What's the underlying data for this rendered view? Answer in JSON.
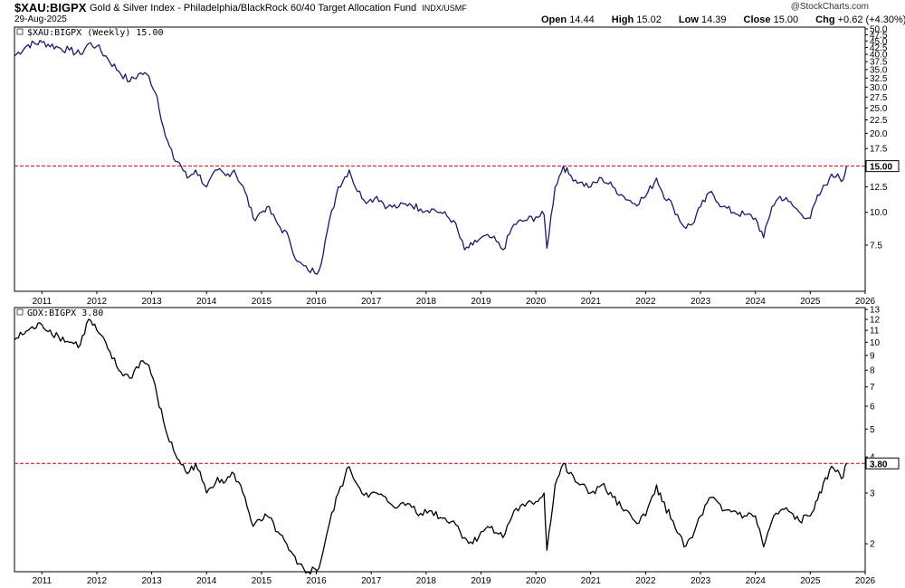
{
  "header": {
    "symbol": "$XAU:BIGPX",
    "description": "Gold & Silver Index - Philadelphia/BlackRock 60/40 Target Allocation Fund",
    "exchange": "INDX/USMF",
    "date": "29-Aug-2025",
    "brand": "@StockCharts.com",
    "ohlc": [
      {
        "label": "Open",
        "value": "14.44"
      },
      {
        "label": "High",
        "value": "15.02"
      },
      {
        "label": "Low",
        "value": "14.39"
      },
      {
        "label": "Close",
        "value": "15.00"
      },
      {
        "label": "Chg",
        "value": "+0.62 (+4.30%)"
      }
    ]
  },
  "chart_data": [
    {
      "type": "line",
      "title": "$XAU:BIGPX (Weekly) 15.00",
      "scale": "log",
      "color": "#1a1a66",
      "ylim": [
        5.0,
        50.0
      ],
      "y_ticks": [
        "50.0",
        "47.5",
        "45.0",
        "42.5",
        "40.0",
        "37.5",
        "35.0",
        "32.5",
        "30.0",
        "27.5",
        "25.0",
        "22.5",
        "20.0",
        "17.5",
        "15.0",
        "12.5",
        "10.0",
        "7.5"
      ],
      "y_tick_values": [
        50,
        47.5,
        45,
        42.5,
        40,
        37.5,
        35,
        32.5,
        30,
        27.5,
        25,
        22.5,
        20,
        17.5,
        15,
        12.5,
        10,
        7.5
      ],
      "reference_line": 15.0,
      "last_label": "15.00",
      "x_years": [
        "2011",
        "2012",
        "2013",
        "2014",
        "2015",
        "2016",
        "2017",
        "2018",
        "2019",
        "2020",
        "2021",
        "2022",
        "2023",
        "2024",
        "2025",
        "2026"
      ],
      "x": [
        2010.5,
        2010.75,
        2011.0,
        2011.3,
        2011.5,
        2011.7,
        2011.85,
        2012.0,
        2012.2,
        2012.4,
        2012.6,
        2012.8,
        2012.95,
        2013.1,
        2013.25,
        2013.4,
        2013.5,
        2013.65,
        2013.8,
        2014.0,
        2014.2,
        2014.35,
        2014.5,
        2014.7,
        2014.85,
        2015.0,
        2015.1,
        2015.3,
        2015.5,
        2015.65,
        2015.85,
        2016.05,
        2016.2,
        2016.4,
        2016.6,
        2016.75,
        2016.95,
        2017.1,
        2017.3,
        2017.5,
        2017.7,
        2017.9,
        2018.1,
        2018.3,
        2018.5,
        2018.7,
        2018.85,
        2019.0,
        2019.2,
        2019.4,
        2019.6,
        2019.8,
        2020.0,
        2020.15,
        2020.2,
        2020.35,
        2020.5,
        2020.6,
        2020.8,
        2021.0,
        2021.2,
        2021.4,
        2021.6,
        2021.8,
        2022.0,
        2022.2,
        2022.3,
        2022.5,
        2022.7,
        2022.85,
        2023.0,
        2023.2,
        2023.4,
        2023.6,
        2023.8,
        2024.0,
        2024.15,
        2024.3,
        2024.45,
        2024.6,
        2024.8,
        2025.0,
        2025.1,
        2025.2,
        2025.35,
        2025.5,
        2025.6,
        2025.66
      ],
      "values": [
        39.5,
        43.5,
        44.5,
        42.5,
        41.5,
        40.0,
        44.0,
        43.0,
        38.5,
        34.5,
        31.5,
        34.0,
        33.0,
        27.5,
        19.5,
        16.0,
        15.5,
        13.5,
        14.5,
        12.5,
        14.5,
        13.8,
        14.5,
        12.0,
        9.5,
        10.0,
        10.5,
        9.0,
        8.0,
        6.5,
        6.0,
        6.0,
        8.5,
        12.5,
        14.5,
        12.0,
        11.0,
        11.5,
        10.5,
        10.5,
        10.8,
        10.3,
        10.3,
        9.9,
        9.3,
        7.2,
        7.5,
        8.0,
        8.0,
        7.2,
        9.0,
        9.3,
        9.6,
        9.8,
        7.3,
        12.5,
        15.0,
        14.0,
        13.0,
        12.5,
        13.5,
        12.5,
        11.5,
        10.8,
        11.5,
        13.5,
        12.0,
        10.5,
        8.8,
        9.0,
        10.5,
        12.0,
        10.5,
        10.0,
        9.8,
        9.5,
        8.0,
        10.5,
        11.5,
        11.0,
        10.0,
        9.5,
        11.0,
        12.0,
        13.5,
        14.0,
        13.3,
        15.0
      ]
    },
    {
      "type": "line",
      "title": "GDX:BIGPX 3.80",
      "scale": "log",
      "color": "#000000",
      "ylim": [
        1.6,
        13.0
      ],
      "y_ticks": [
        "13",
        "12",
        "11",
        "10",
        "9",
        "8",
        "7",
        "6",
        "5",
        "4",
        "3",
        "2"
      ],
      "y_tick_values": [
        13,
        12,
        11,
        10,
        9,
        8,
        7,
        6,
        5,
        4,
        3,
        2
      ],
      "reference_line": 3.8,
      "last_label": "3.80",
      "x_years": [
        "2011",
        "2012",
        "2013",
        "2014",
        "2015",
        "2016",
        "2017",
        "2018",
        "2019",
        "2020",
        "2021",
        "2022",
        "2023",
        "2024",
        "2025",
        "2026"
      ],
      "x": [
        2010.5,
        2010.75,
        2011.0,
        2011.3,
        2011.5,
        2011.7,
        2011.85,
        2012.0,
        2012.2,
        2012.4,
        2012.6,
        2012.8,
        2012.95,
        2013.1,
        2013.25,
        2013.4,
        2013.5,
        2013.65,
        2013.8,
        2014.0,
        2014.2,
        2014.35,
        2014.5,
        2014.7,
        2014.85,
        2015.0,
        2015.1,
        2015.3,
        2015.5,
        2015.65,
        2015.85,
        2016.05,
        2016.2,
        2016.4,
        2016.6,
        2016.75,
        2016.95,
        2017.1,
        2017.3,
        2017.5,
        2017.7,
        2017.9,
        2018.1,
        2018.3,
        2018.5,
        2018.7,
        2018.85,
        2019.0,
        2019.2,
        2019.4,
        2019.6,
        2019.8,
        2020.0,
        2020.15,
        2020.2,
        2020.35,
        2020.5,
        2020.6,
        2020.8,
        2021.0,
        2021.2,
        2021.4,
        2021.6,
        2021.8,
        2022.0,
        2022.2,
        2022.3,
        2022.5,
        2022.7,
        2022.85,
        2023.0,
        2023.2,
        2023.4,
        2023.6,
        2023.8,
        2024.0,
        2024.15,
        2024.3,
        2024.45,
        2024.6,
        2024.8,
        2025.0,
        2025.1,
        2025.2,
        2025.35,
        2025.5,
        2025.6,
        2025.66
      ],
      "values": [
        10.2,
        11.0,
        11.5,
        10.5,
        10.0,
        9.8,
        12.0,
        11.0,
        9.5,
        8.0,
        7.5,
        8.6,
        8.3,
        6.5,
        5.0,
        4.2,
        3.9,
        3.5,
        3.8,
        3.0,
        3.4,
        3.3,
        3.5,
        2.9,
        2.3,
        2.4,
        2.5,
        2.2,
        1.9,
        1.7,
        1.6,
        1.65,
        2.2,
        3.0,
        3.7,
        3.2,
        2.9,
        3.0,
        2.8,
        2.7,
        2.75,
        2.55,
        2.6,
        2.45,
        2.4,
        2.1,
        2.0,
        2.2,
        2.3,
        2.1,
        2.6,
        2.7,
        2.8,
        3.0,
        1.9,
        3.2,
        3.8,
        3.5,
        3.2,
        3.0,
        3.2,
        2.9,
        2.6,
        2.4,
        2.5,
        3.2,
        2.8,
        2.4,
        1.95,
        2.1,
        2.5,
        2.9,
        2.6,
        2.6,
        2.5,
        2.5,
        1.95,
        2.4,
        2.6,
        2.6,
        2.4,
        2.5,
        2.8,
        3.0,
        3.6,
        3.6,
        3.4,
        3.8
      ]
    }
  ]
}
